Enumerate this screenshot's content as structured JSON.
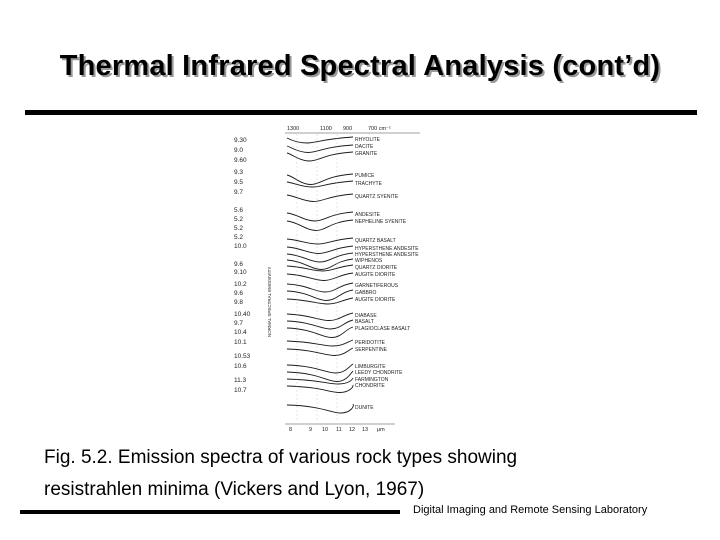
{
  "slide": {
    "title": "Thermal Infrared Spectral Analysis (cont’d)",
    "caption_line1": "Fig. 5.2. Emission spectra of various rock types showing",
    "caption_line2": "resistrahlen minima (Vickers and Lyon, 1967)",
    "footer": "Digital Imaging and Remote Sensing Laboratory"
  },
  "figure": {
    "top_axis_labels": [
      "1300",
      "1100",
      "900",
      "700  cm⁻¹"
    ],
    "bottom_axis_labels": [
      "8",
      "9",
      "10",
      "11",
      "12",
      "13",
      "μm"
    ],
    "y_axis_label": "NORMAL SPECTRAL EMISSIVITY",
    "left_values": [
      "9.30",
      "9.0",
      "9.60",
      "9.3",
      "9.5",
      "9.7",
      "5.6",
      "5.2",
      "5.2",
      "5.2",
      "10.0",
      "9.6",
      "9.10",
      "10.2",
      "9.6",
      "9.8",
      "10.40",
      "9.7",
      "10.4",
      "10.1",
      "10.53",
      "10.6",
      "11.3",
      "10.7"
    ],
    "rock_labels": [
      "RHYOLITE",
      "DACITE",
      "GRANITE",
      "PUMICE",
      "TRACHYTE",
      "QUARTZ SYENITE",
      "ANDESITE",
      "NEPHELINE SYENITE",
      "QUARTZ BASALT",
      "HYPERSTHENE ANDESITE",
      "HYPERSTHENE ANDESITE",
      "W/PHENOS",
      "QUARTZ DIORITE",
      "AUGITE DIORITE",
      "GARNETIFEROUS",
      "GABBRO",
      "AUGITE DIORITE",
      "DIABASE",
      "BASALT",
      "PLAGIOCLASE BASALT",
      "PERIDOTITE",
      "SERPENTINE",
      "LIMBURGITE",
      "LEEDY CHONDRITE",
      "FARMINGTON",
      "CHONDRITE",
      "DUNITE"
    ]
  }
}
